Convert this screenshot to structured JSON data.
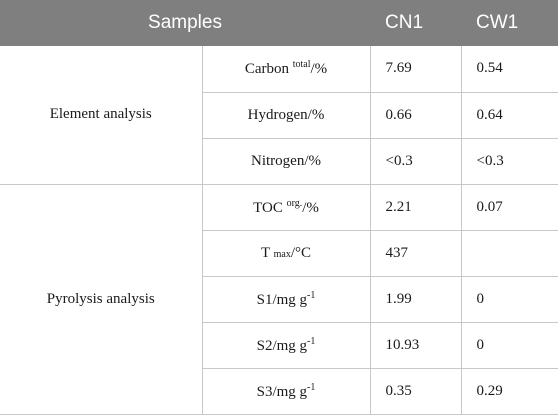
{
  "header": {
    "samples": "Samples",
    "cn1": "CN1",
    "cw1": "CW1"
  },
  "groups": {
    "element": "Element analysis",
    "pyrolysis": "Pyrolysis analysis"
  },
  "rows": [
    {
      "label_main": "Carbon ",
      "label_sup": "total",
      "label_tail": "/%",
      "cn1": "7.69",
      "cw1": "0.54"
    },
    {
      "label": "Hydrogen/%",
      "cn1": "0.66",
      "cw1": "0.64"
    },
    {
      "label": "Nitrogen/%",
      "cn1": "<0.3",
      "cw1": "<0.3"
    },
    {
      "label_main": "TOC ",
      "label_sup": "org.",
      "label_tail": "/%",
      "cn1": "2.21",
      "cw1": "0.07"
    },
    {
      "label_main": "T ",
      "label_sub": "max",
      "label_tail": "/°C",
      "cn1": "437",
      "cw1": ""
    },
    {
      "label_main": "S1/mg g",
      "label_sup": "-1",
      "cn1": "1.99",
      "cw1": "0"
    },
    {
      "label_main": "S2/mg g",
      "label_sup": "-1",
      "cn1": "10.93",
      "cw1": "0"
    },
    {
      "label_main": "S3/mg g",
      "label_sup": "-1",
      "cn1": "0.35",
      "cw1": "0.29"
    }
  ]
}
